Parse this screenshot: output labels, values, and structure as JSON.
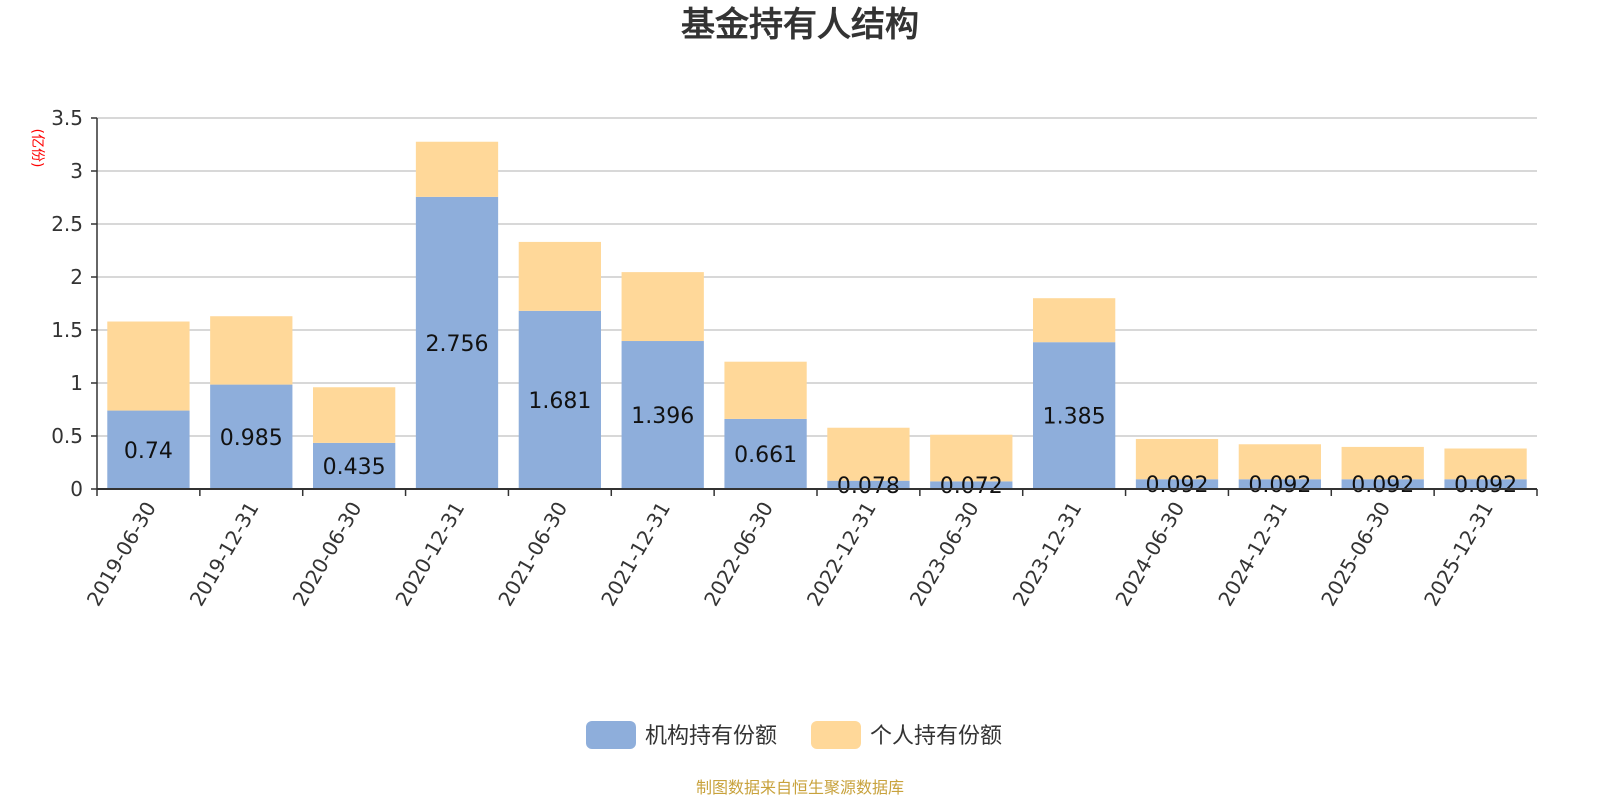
{
  "chart_data": {
    "type": "bar",
    "stacked": true,
    "title": "基金持有人结构",
    "ylabel": "(亿份)",
    "xlabel": "",
    "ylim": [
      0,
      3.5
    ],
    "yticks": [
      "0",
      "0.5",
      "1",
      "1.5",
      "2",
      "2.5",
      "3",
      "3.5"
    ],
    "grid": true,
    "legend_position": "bottom",
    "categories": [
      "2019-06-30",
      "2019-12-31",
      "2020-06-30",
      "2020-12-31",
      "2021-06-30",
      "2021-12-31",
      "2022-06-30",
      "2022-12-31",
      "2023-06-30",
      "2023-12-31",
      "2024-06-30",
      "2024-12-31",
      "2025-06-30",
      "2025-12-31"
    ],
    "series": [
      {
        "name": "机构持有份额",
        "color": "#8eaedb",
        "values": [
          0.74,
          0.985,
          0.435,
          2.756,
          1.681,
          1.396,
          0.661,
          0.078,
          0.072,
          1.385,
          0.092,
          0.092,
          0.092,
          0.092
        ],
        "labels": [
          "0.74",
          "0.985",
          "0.435",
          "2.756",
          "1.681",
          "1.396",
          "0.661",
          "0.078",
          "0.072",
          "1.385",
          "0.092",
          "0.092",
          "0.092",
          "0.092"
        ]
      },
      {
        "name": "个人持有份额",
        "color": "#ffd899",
        "values": [
          0.84,
          0.645,
          0.525,
          0.52,
          0.65,
          0.65,
          0.54,
          0.5,
          0.44,
          0.415,
          0.38,
          0.33,
          0.305,
          0.29
        ]
      }
    ]
  },
  "source_note": "制图数据来自恒生聚源数据库"
}
